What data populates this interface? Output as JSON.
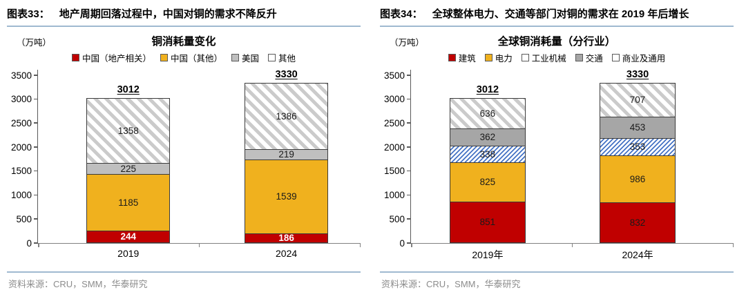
{
  "styles": {
    "accent_rule_color": "#9FB9D0",
    "source_text_color": "#8C8C8C",
    "red": "#C00000",
    "gold": "#F0B11E",
    "light_gray": "#BFBFBF",
    "mid_gray": "#A6A6A6",
    "hatch_gray": "#CBCBCB",
    "hatch_blue": "#4472C4"
  },
  "charts": [
    {
      "figure_label": "图表33：",
      "figure_title": "地产周期回落过程中，中国对铜的需求不降反升",
      "unit_label": "（万吨）",
      "chart_title": "铜消耗量变化",
      "source": "资料来源：CRU，SMM，华泰研究",
      "chart_data": {
        "type": "bar",
        "stacked": true,
        "grid": false,
        "legend_position": "top",
        "categories": [
          "2019",
          "2024"
        ],
        "series": [
          {
            "name": "中国（地产相关）",
            "values": [
              244,
              186
            ],
            "fill": "solid",
            "color": "#C00000",
            "label_color": "#FFFFFF",
            "label_bold": true
          },
          {
            "name": "中国（其他）",
            "values": [
              1185,
              1539
            ],
            "fill": "solid",
            "color": "#F0B11E",
            "label_color": "#1a1a1a",
            "label_bold": false
          },
          {
            "name": "美国",
            "values": [
              225,
              219
            ],
            "fill": "solid",
            "color": "#BFBFBF",
            "label_color": "#1a1a1a",
            "label_bold": false
          },
          {
            "name": "其他",
            "values": [
              1358,
              1386
            ],
            "fill": "hatch-gray",
            "color": "#FFFFFF",
            "hatch_color": "#CBCBCB",
            "label_color": "#1a1a1a",
            "label_bold": false
          }
        ],
        "totals": [
          3012,
          3330
        ],
        "ylim": [
          0,
          3500
        ],
        "ytick_step": 500
      }
    },
    {
      "figure_label": "图表34：",
      "figure_title": "全球整体电力、交通等部门对铜的需求在 2019 年后增长",
      "unit_label": "（万吨）",
      "chart_title": "全球铜消耗量（分行业）",
      "source": "资料来源：CRU，SMM，华泰研究",
      "chart_data": {
        "type": "bar",
        "stacked": true,
        "grid": false,
        "legend_position": "top",
        "categories": [
          "2019年",
          "2024年"
        ],
        "series": [
          {
            "name": "建筑",
            "values": [
              851,
              832
            ],
            "fill": "solid",
            "color": "#C00000",
            "label_color": "#1a1a1a",
            "label_bold": false
          },
          {
            "name": "电力",
            "values": [
              825,
              986
            ],
            "fill": "solid",
            "color": "#F0B11E",
            "label_color": "#1a1a1a",
            "label_bold": false
          },
          {
            "name": "工业机械",
            "values": [
              338,
              353
            ],
            "fill": "hatch-blue",
            "color": "#FFFFFF",
            "hatch_color": "#4472C4",
            "label_color": "#1a1a1a",
            "label_bold": false
          },
          {
            "name": "交通",
            "values": [
              362,
              453
            ],
            "fill": "solid",
            "color": "#A6A6A6",
            "label_color": "#1a1a1a",
            "label_bold": false
          },
          {
            "name": "商业及通用",
            "values": [
              636,
              707
            ],
            "fill": "hatch-gray",
            "color": "#FFFFFF",
            "hatch_color": "#CBCBCB",
            "label_color": "#1a1a1a",
            "label_bold": false
          }
        ],
        "totals": [
          3012,
          3330
        ],
        "ylim": [
          0,
          3500
        ],
        "ytick_step": 500
      }
    }
  ]
}
